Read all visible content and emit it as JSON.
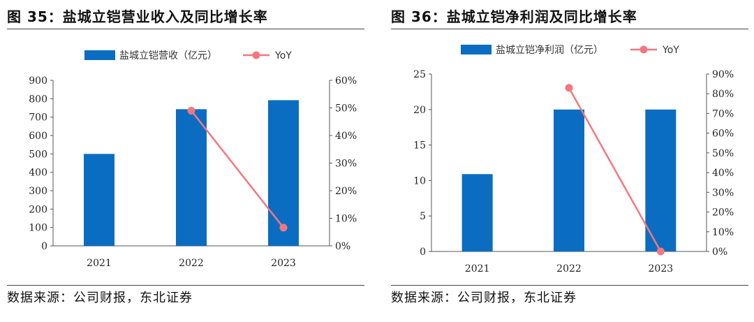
{
  "colors": {
    "bar": "#0b6dc2",
    "line": "#f4777f",
    "axis": "#555555"
  },
  "panels": [
    {
      "title": "图 35：盐城立铠营业收入及同比增长率",
      "source": "数据来源：公司财报，东北证券",
      "chart_data": {
        "type": "bar",
        "categories": [
          "2021",
          "2022",
          "2023"
        ],
        "series": [
          {
            "name": "盐城立铠营收（亿元）",
            "type": "bar",
            "axis": "left",
            "values": [
              500,
              743,
              792
            ]
          },
          {
            "name": "YoY",
            "type": "line",
            "axis": "right",
            "values": [
              null,
              0.49,
              0.066
            ]
          }
        ],
        "ylim": [
          0,
          900
        ],
        "yticks": [
          "0",
          "100",
          "200",
          "300",
          "400",
          "500",
          "600",
          "700",
          "800",
          "900"
        ],
        "y2lim": [
          0,
          0.6
        ],
        "y2ticks": [
          "0%",
          "10%",
          "20%",
          "30%",
          "40%",
          "50%",
          "60%"
        ],
        "legend": "top-center",
        "grid": false
      }
    },
    {
      "title": "图 36：盐城立铠净利润及同比增长率",
      "source": "数据来源：公司财报，东北证券",
      "chart_data": {
        "type": "bar",
        "categories": [
          "2021",
          "2022",
          "2023"
        ],
        "series": [
          {
            "name": "盐城立铠净利润（亿元）",
            "type": "bar",
            "axis": "left",
            "values": [
              10.9,
              20.0,
              20.0
            ]
          },
          {
            "name": "YoY",
            "type": "line",
            "axis": "right",
            "values": [
              null,
              0.83,
              0.0
            ]
          }
        ],
        "ylim": [
          0,
          25
        ],
        "yticks": [
          "0",
          "5",
          "10",
          "15",
          "20",
          "25"
        ],
        "y2lim": [
          0,
          0.9
        ],
        "y2ticks": [
          "0%",
          "10%",
          "20%",
          "30%",
          "40%",
          "50%",
          "60%",
          "70%",
          "80%",
          "90%"
        ],
        "legend": "top-center",
        "grid": false
      }
    }
  ]
}
